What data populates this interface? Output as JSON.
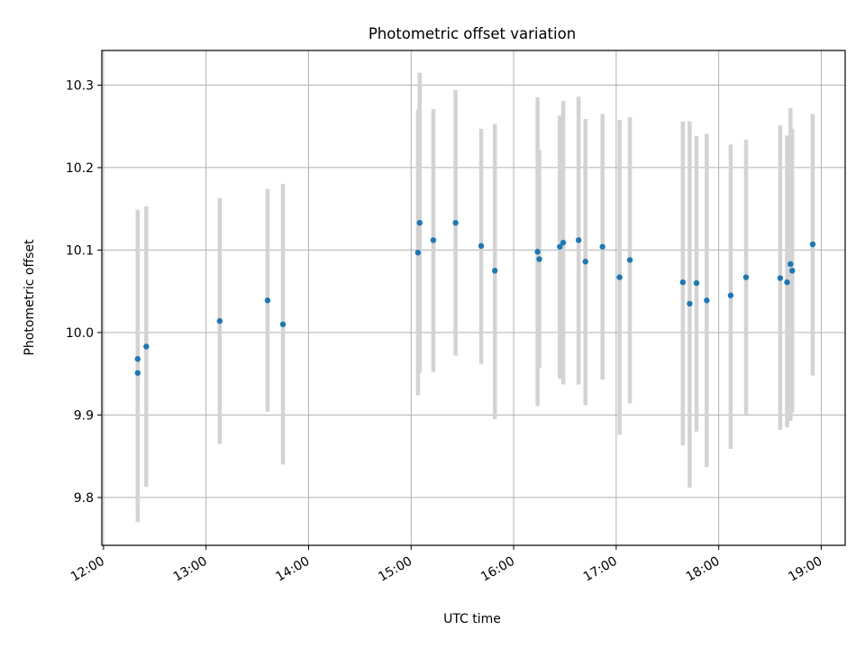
{
  "chart_data": {
    "type": "scatter",
    "title": "Photometric offset variation",
    "xlabel": "UTC time",
    "ylabel": "Photometric offset",
    "x_unit": "UTC time (HH:MM)",
    "xlim": [
      "11:59",
      "19:14"
    ],
    "ylim": [
      9.742,
      10.342
    ],
    "x_ticks": [
      "12:00",
      "13:00",
      "14:00",
      "15:00",
      "16:00",
      "17:00",
      "18:00",
      "19:00"
    ],
    "y_ticks": [
      "9.8",
      "9.9",
      "10.0",
      "10.1",
      "10.2",
      "10.3"
    ],
    "grid": true,
    "colors": {
      "marker": "#1f77b4",
      "errorbar": "#d3d3d3",
      "grid": "#b0b0b0"
    },
    "points": [
      {
        "x": "12:20",
        "y": 9.951,
        "yerr_low": 9.77,
        "yerr_high": 10.133
      },
      {
        "x": "12:20",
        "y": 9.968,
        "yerr_low": 9.787,
        "yerr_high": 10.149
      },
      {
        "x": "12:25",
        "y": 9.983,
        "yerr_low": 9.813,
        "yerr_high": 10.153
      },
      {
        "x": "13:08",
        "y": 10.014,
        "yerr_low": 9.865,
        "yerr_high": 10.163
      },
      {
        "x": "13:36",
        "y": 10.039,
        "yerr_low": 9.904,
        "yerr_high": 10.174
      },
      {
        "x": "13:45",
        "y": 10.01,
        "yerr_low": 9.84,
        "yerr_high": 10.18
      },
      {
        "x": "15:04",
        "y": 10.097,
        "yerr_low": 9.924,
        "yerr_high": 10.27
      },
      {
        "x": "15:05",
        "y": 10.133,
        "yerr_low": 9.951,
        "yerr_high": 10.315
      },
      {
        "x": "15:13",
        "y": 10.112,
        "yerr_low": 9.952,
        "yerr_high": 10.271
      },
      {
        "x": "15:26",
        "y": 10.133,
        "yerr_low": 9.972,
        "yerr_high": 10.294
      },
      {
        "x": "15:41",
        "y": 10.105,
        "yerr_low": 9.962,
        "yerr_high": 10.247
      },
      {
        "x": "15:49",
        "y": 10.075,
        "yerr_low": 9.895,
        "yerr_high": 10.253
      },
      {
        "x": "16:14",
        "y": 10.098,
        "yerr_low": 9.911,
        "yerr_high": 10.285
      },
      {
        "x": "16:15",
        "y": 10.089,
        "yerr_low": 9.957,
        "yerr_high": 10.221
      },
      {
        "x": "16:27",
        "y": 10.104,
        "yerr_low": 9.944,
        "yerr_high": 10.263
      },
      {
        "x": "16:29",
        "y": 10.109,
        "yerr_low": 9.937,
        "yerr_high": 10.281
      },
      {
        "x": "16:38",
        "y": 10.112,
        "yerr_low": 9.937,
        "yerr_high": 10.286
      },
      {
        "x": "16:42",
        "y": 10.086,
        "yerr_low": 9.912,
        "yerr_high": 10.259
      },
      {
        "x": "16:52",
        "y": 10.104,
        "yerr_low": 9.943,
        "yerr_high": 10.265
      },
      {
        "x": "17:02",
        "y": 10.067,
        "yerr_low": 9.876,
        "yerr_high": 10.258
      },
      {
        "x": "17:08",
        "y": 10.088,
        "yerr_low": 9.914,
        "yerr_high": 10.261
      },
      {
        "x": "17:39",
        "y": 10.061,
        "yerr_low": 9.863,
        "yerr_high": 10.256
      },
      {
        "x": "17:43",
        "y": 10.035,
        "yerr_low": 9.812,
        "yerr_high": 10.256
      },
      {
        "x": "17:47",
        "y": 10.06,
        "yerr_low": 9.88,
        "yerr_high": 10.238
      },
      {
        "x": "17:53",
        "y": 10.039,
        "yerr_low": 9.837,
        "yerr_high": 10.241
      },
      {
        "x": "18:07",
        "y": 10.045,
        "yerr_low": 9.859,
        "yerr_high": 10.228
      },
      {
        "x": "18:16",
        "y": 10.067,
        "yerr_low": 9.901,
        "yerr_high": 10.234
      },
      {
        "x": "18:36",
        "y": 10.066,
        "yerr_low": 9.882,
        "yerr_high": 10.251
      },
      {
        "x": "18:40",
        "y": 10.061,
        "yerr_low": 9.885,
        "yerr_high": 10.239
      },
      {
        "x": "18:42",
        "y": 10.083,
        "yerr_low": 9.893,
        "yerr_high": 10.272
      },
      {
        "x": "18:43",
        "y": 10.075,
        "yerr_low": 9.903,
        "yerr_high": 10.247
      },
      {
        "x": "18:55",
        "y": 10.107,
        "yerr_low": 9.948,
        "yerr_high": 10.265
      }
    ]
  }
}
